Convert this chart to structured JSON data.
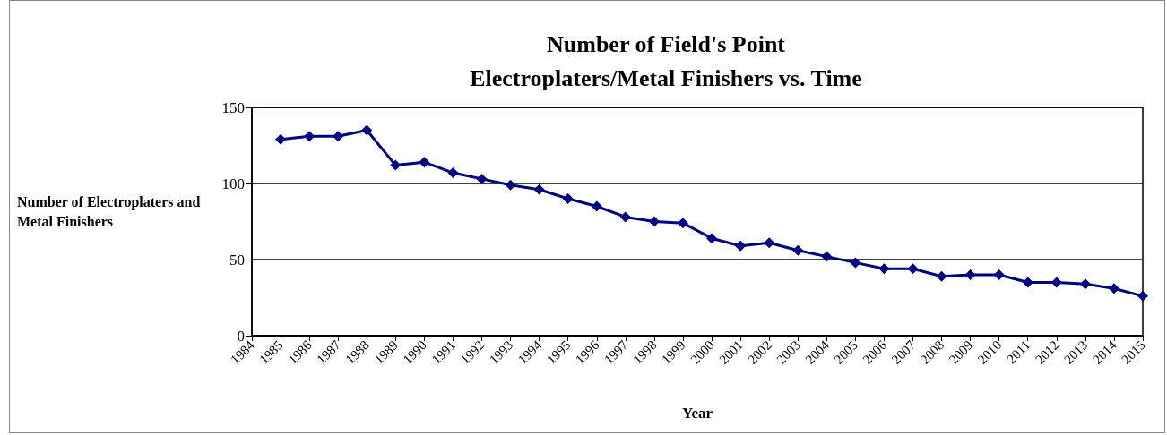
{
  "chart_data": {
    "type": "line",
    "title": "Number of Field's Point\nElectroplaters/Metal Finishers vs. Time",
    "xlabel": "Year",
    "ylabel": "Number of Electroplaters and Metal Finishers",
    "categories": [
      "1984",
      "1985",
      "1986",
      "1987",
      "1988",
      "1989",
      "1990",
      "1991",
      "1992",
      "1993",
      "1994",
      "1995",
      "1996",
      "1997",
      "1998",
      "1999",
      "2000",
      "2001",
      "2002",
      "2003",
      "2004",
      "2005",
      "2006",
      "2007",
      "2008",
      "2009",
      "2010",
      "2011",
      "2012",
      "2013",
      "2014",
      "2015"
    ],
    "series": [
      {
        "color": "#000080",
        "values": [
          null,
          129,
          131,
          131,
          135,
          112,
          114,
          107,
          103,
          99,
          96,
          90,
          85,
          78,
          75,
          74,
          64,
          59,
          61,
          56,
          52,
          48,
          44,
          44,
          39,
          40,
          40,
          35,
          35,
          34,
          31,
          26
        ]
      }
    ],
    "ylim": [
      0,
      150
    ],
    "yticks": [
      0,
      50,
      100,
      150
    ],
    "grid": "y",
    "marker": "diamond",
    "line_style": "solid"
  }
}
